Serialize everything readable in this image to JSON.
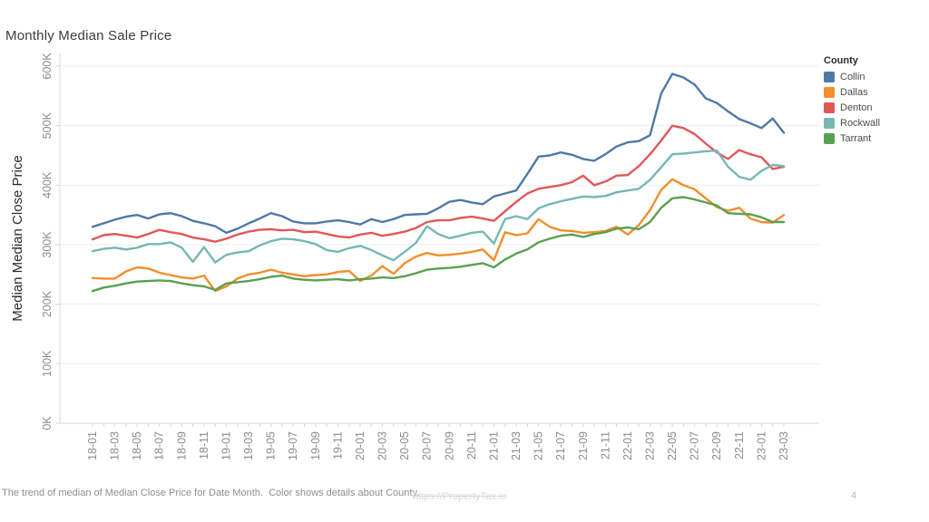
{
  "page": {
    "title": "Monthly Median Sale Price",
    "caption": "The trend of median of Median Close Price for Date Month.  Color shows details about County.",
    "watermark": "https://PropertyTax.io",
    "page_number": "4"
  },
  "legend": {
    "title": "County"
  },
  "chart_data": {
    "type": "line",
    "title": "Monthly Median Sale Price",
    "xlabel": "",
    "ylabel": "Median Median Close Price",
    "ylim": [
      0,
      620
    ],
    "y_ticks": [
      "0K",
      "100K",
      "200K",
      "300K",
      "400K",
      "500K",
      "600K"
    ],
    "y_tick_values": [
      0,
      100,
      200,
      300,
      400,
      500,
      600
    ],
    "grid": "horizontal",
    "legend_position": "top-right",
    "x": [
      "18-01",
      "18-02",
      "18-03",
      "18-04",
      "18-05",
      "18-06",
      "18-07",
      "18-08",
      "18-09",
      "18-10",
      "18-11",
      "18-12",
      "19-01",
      "19-02",
      "19-03",
      "19-04",
      "19-05",
      "19-06",
      "19-07",
      "19-08",
      "19-09",
      "19-10",
      "19-11",
      "19-12",
      "20-01",
      "20-02",
      "20-03",
      "20-04",
      "20-05",
      "20-06",
      "20-07",
      "20-08",
      "20-09",
      "20-10",
      "20-11",
      "20-12",
      "21-01",
      "21-02",
      "21-03",
      "21-04",
      "21-05",
      "21-06",
      "21-07",
      "21-08",
      "21-09",
      "21-10",
      "21-11",
      "21-12",
      "22-01",
      "22-02",
      "22-03",
      "22-04",
      "22-05",
      "22-06",
      "22-07",
      "22-08",
      "22-09",
      "22-10",
      "22-11",
      "22-12",
      "23-01",
      "23-02",
      "23-03"
    ],
    "x_tick_labels": [
      "18-01",
      "18-03",
      "18-05",
      "18-07",
      "18-09",
      "18-11",
      "19-01",
      "19-03",
      "19-05",
      "19-07",
      "19-09",
      "19-11",
      "20-01",
      "20-03",
      "20-05",
      "20-07",
      "20-09",
      "20-11",
      "21-01",
      "21-03",
      "21-05",
      "21-07",
      "21-09",
      "21-11",
      "22-01",
      "22-03",
      "22-05",
      "22-07",
      "22-09",
      "22-11",
      "23-01",
      "23-03"
    ],
    "value_unit": "K",
    "series": [
      {
        "name": "Collin",
        "color": "#4e79a7",
        "values": [
          330,
          336,
          342,
          347,
          350,
          344,
          351,
          353,
          348,
          340,
          336,
          331,
          320,
          327,
          336,
          344,
          353,
          348,
          339,
          336,
          336,
          339,
          341,
          338,
          334,
          343,
          338,
          343,
          350,
          351,
          352,
          361,
          372,
          375,
          371,
          368,
          381,
          386,
          391,
          419,
          448,
          450,
          455,
          451,
          444,
          441,
          452,
          465,
          472,
          474,
          484,
          554,
          587,
          581,
          569,
          546,
          538,
          524,
          511,
          504,
          496,
          512,
          488
        ]
      },
      {
        "name": "Dallas",
        "color": "#f28e2b",
        "values": [
          244,
          243,
          243,
          255,
          262,
          260,
          253,
          249,
          245,
          243,
          248,
          222,
          230,
          243,
          250,
          253,
          258,
          253,
          250,
          247,
          249,
          250,
          254,
          256,
          239,
          248,
          264,
          251,
          269,
          280,
          286,
          282,
          283,
          285,
          288,
          292,
          274,
          321,
          316,
          319,
          343,
          330,
          324,
          323,
          320,
          321,
          323,
          330,
          317,
          333,
          358,
          392,
          410,
          400,
          393,
          378,
          363,
          357,
          362,
          344,
          338,
          337,
          350
        ]
      },
      {
        "name": "Denton",
        "color": "#e15759",
        "values": [
          309,
          316,
          318,
          315,
          312,
          318,
          325,
          321,
          318,
          312,
          309,
          305,
          310,
          317,
          322,
          325,
          326,
          324,
          325,
          321,
          322,
          318,
          314,
          312,
          317,
          320,
          315,
          318,
          322,
          328,
          338,
          341,
          341,
          345,
          347,
          344,
          340,
          356,
          372,
          386,
          394,
          397,
          400,
          405,
          416,
          400,
          406,
          416,
          417,
          432,
          452,
          475,
          500,
          496,
          486,
          470,
          455,
          444,
          459,
          452,
          447,
          427,
          431
        ]
      },
      {
        "name": "Rockwall",
        "color": "#76b7b2",
        "values": [
          289,
          293,
          295,
          292,
          295,
          301,
          301,
          304,
          295,
          271,
          296,
          270,
          283,
          287,
          289,
          299,
          306,
          310,
          309,
          306,
          301,
          291,
          288,
          294,
          298,
          291,
          282,
          274,
          288,
          303,
          331,
          318,
          311,
          315,
          320,
          322,
          302,
          343,
          348,
          343,
          361,
          368,
          373,
          377,
          381,
          380,
          382,
          388,
          391,
          394,
          409,
          430,
          452,
          453,
          455,
          457,
          458,
          431,
          414,
          409,
          424,
          434,
          432
        ]
      },
      {
        "name": "Tarrant",
        "color": "#59a14f",
        "values": [
          222,
          228,
          231,
          235,
          238,
          239,
          240,
          239,
          235,
          232,
          230,
          224,
          235,
          237,
          239,
          242,
          246,
          248,
          243,
          241,
          240,
          241,
          242,
          240,
          242,
          243,
          245,
          244,
          247,
          252,
          258,
          260,
          261,
          263,
          266,
          269,
          262,
          275,
          285,
          292,
          304,
          310,
          315,
          317,
          313,
          318,
          321,
          327,
          329,
          326,
          338,
          362,
          378,
          380,
          376,
          371,
          366,
          353,
          352,
          351,
          346,
          338,
          338
        ]
      }
    ]
  }
}
